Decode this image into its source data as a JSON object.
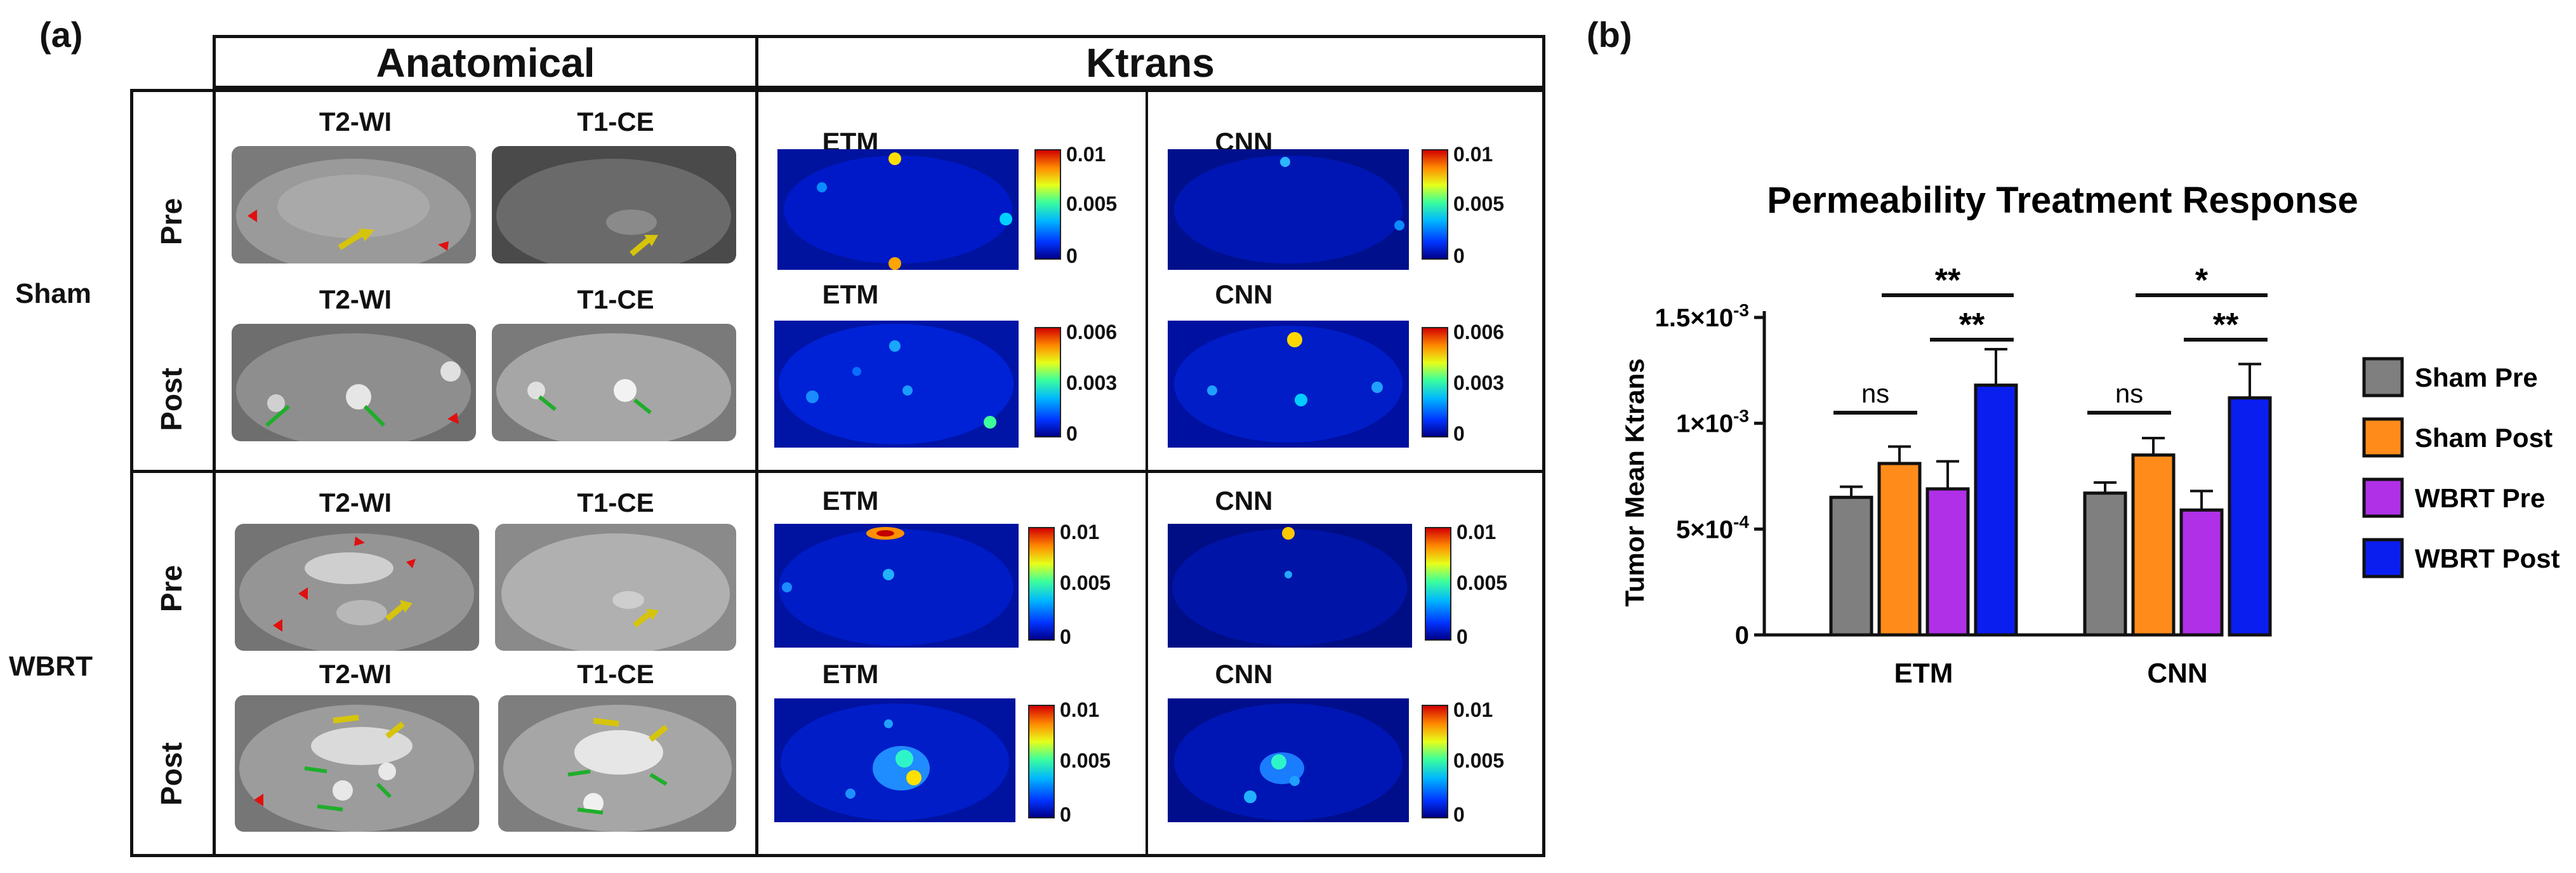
{
  "panel_a": {
    "label": "(a)",
    "header_anatomical": "Anatomical",
    "header_ktrans": "Ktrans",
    "groups": [
      {
        "name": "Sham",
        "timepoints": [
          {
            "name": "Pre",
            "seq1": "T2-WI",
            "seq2": "T1-CE",
            "map1": "ETM",
            "map2": "CNN",
            "scale1": [
              "0.01",
              "0.005",
              "0"
            ],
            "scale2": [
              "0.01",
              "0.005",
              "0"
            ]
          },
          {
            "name": "Post",
            "seq1": "T2-WI",
            "seq2": "T1-CE",
            "map1": "ETM",
            "map2": "CNN",
            "scale1": [
              "0.006",
              "0.003",
              "0"
            ],
            "scale2": [
              "0.006",
              "0.003",
              "0"
            ]
          }
        ]
      },
      {
        "name": "WBRT",
        "timepoints": [
          {
            "name": "Pre",
            "seq1": "T2-WI",
            "seq2": "T1-CE",
            "map1": "ETM",
            "map2": "CNN",
            "scale1": [
              "0.01",
              "0.005",
              "0"
            ],
            "scale2": [
              "0.01",
              "0.005",
              "0"
            ]
          },
          {
            "name": "Post",
            "seq1": "T2-WI",
            "seq2": "T1-CE",
            "map1": "ETM",
            "map2": "CNN",
            "scale1": [
              "0.01",
              "0.005",
              "0"
            ],
            "scale2": [
              "0.01",
              "0.005",
              "0"
            ]
          }
        ]
      }
    ]
  },
  "panel_b": {
    "label": "(b)"
  },
  "colors": {
    "sham_pre": "#7f7f7f",
    "sham_post": "#ff8c1a",
    "wbrt_pre": "#b030e8",
    "wbrt_post": "#0a1ef0"
  },
  "chart_data": {
    "type": "bar",
    "title": "Permeability Treatment Response",
    "ylabel": "Tumor Mean Ktrans",
    "xlabel": "",
    "categories": [
      "ETM",
      "CNN"
    ],
    "ylim": [
      0,
      0.0015
    ],
    "yticks": [
      {
        "value": 0,
        "base": "0",
        "exp": ""
      },
      {
        "value": 0.0005,
        "base": "5×10",
        "exp": "-4"
      },
      {
        "value": 0.001,
        "base": "1×10",
        "exp": "-3"
      },
      {
        "value": 0.0015,
        "base": "1.5×10",
        "exp": "-3"
      }
    ],
    "series": [
      {
        "name": "Sham Pre",
        "color": "#7f7f7f",
        "values": [
          0.00065,
          0.00067
        ],
        "errors": [
          5e-05,
          5e-05
        ]
      },
      {
        "name": "Sham Post",
        "color": "#ff8c1a",
        "values": [
          0.00081,
          0.00085
        ],
        "errors": [
          8e-05,
          8e-05
        ]
      },
      {
        "name": "WBRT Pre",
        "color": "#b030e8",
        "values": [
          0.00069,
          0.00059
        ],
        "errors": [
          0.00013,
          9e-05
        ]
      },
      {
        "name": "WBRT Post",
        "color": "#0a1ef0",
        "values": [
          0.00118,
          0.00112
        ],
        "errors": [
          0.00017,
          0.00016
        ]
      }
    ],
    "annotations": [
      {
        "category": 0,
        "from": 0,
        "to": 1,
        "text": "ns"
      },
      {
        "category": 0,
        "from": 1,
        "to": 3,
        "text": "**"
      },
      {
        "category": 0,
        "from": 2,
        "to": 3,
        "text": "**"
      },
      {
        "category": 1,
        "from": 0,
        "to": 1,
        "text": "ns"
      },
      {
        "category": 1,
        "from": 1,
        "to": 3,
        "text": "*"
      },
      {
        "category": 1,
        "from": 2,
        "to": 3,
        "text": "**"
      }
    ],
    "legend_position": "right"
  }
}
